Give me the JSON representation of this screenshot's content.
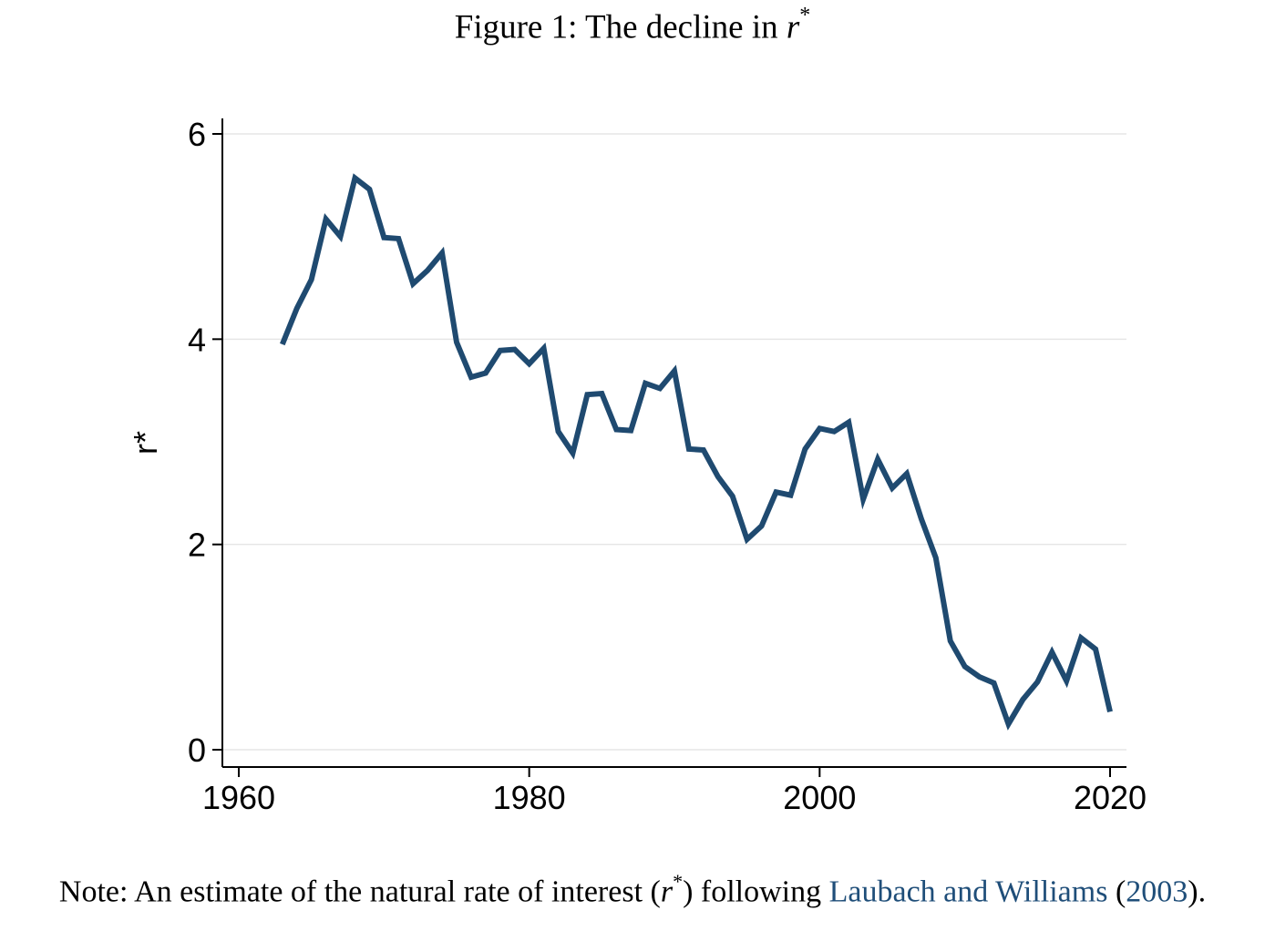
{
  "figure": {
    "title_prefix": "Figure 1: The decline in ",
    "title_math": "r",
    "title_sup": "*"
  },
  "note": {
    "prefix": "Note: An estimate of the natural rate of interest (",
    "math": "r",
    "sup": "*",
    "middle": ") following ",
    "citation_authors": "Laubach and Williams",
    "citation_year_open": " (",
    "citation_year": "2003",
    "citation_year_close": ")",
    "suffix": "."
  },
  "chart_data": {
    "type": "line",
    "title": "Figure 1: The decline in r*",
    "xlabel": "",
    "ylabel": "r*",
    "xlim": [
      1960,
      2021
    ],
    "ylim": [
      -0.15,
      6.15
    ],
    "xticks": [
      1960,
      1980,
      2000,
      2020
    ],
    "yticks": [
      0,
      2,
      4,
      6
    ],
    "grid": "horizontal",
    "line_color": "#1f4a70",
    "series": [
      {
        "x": [
          1963,
          1964,
          1965,
          1966,
          1967,
          1968,
          1969,
          1970,
          1971,
          1972,
          1973,
          1974,
          1975,
          1976,
          1977,
          1978,
          1979,
          1980,
          1981,
          1982,
          1983,
          1984,
          1985,
          1986,
          1987,
          1988,
          1989,
          1990,
          1991,
          1992,
          1993,
          1994,
          1995,
          1996,
          1997,
          1998,
          1999,
          2000,
          2001,
          2002,
          2003,
          2004,
          2005,
          2006,
          2007,
          2008,
          2009,
          2010,
          2011,
          2012,
          2013,
          2014,
          2015,
          2016,
          2017,
          2018,
          2019,
          2020
        ],
        "values": [
          3.95,
          4.3,
          4.58,
          5.17,
          5.0,
          5.57,
          5.46,
          4.99,
          4.98,
          4.54,
          4.67,
          4.84,
          3.97,
          3.63,
          3.67,
          3.89,
          3.9,
          3.76,
          3.91,
          3.1,
          2.89,
          3.46,
          3.47,
          3.12,
          3.11,
          3.57,
          3.52,
          3.69,
          2.93,
          2.92,
          2.66,
          2.47,
          2.05,
          2.18,
          2.51,
          2.48,
          2.93,
          3.13,
          3.1,
          3.19,
          2.44,
          2.83,
          2.55,
          2.69,
          2.25,
          1.87,
          1.06,
          0.81,
          0.71,
          0.65,
          0.25,
          0.49,
          0.66,
          0.95,
          0.67,
          1.09,
          0.98,
          0.37
        ]
      }
    ]
  }
}
